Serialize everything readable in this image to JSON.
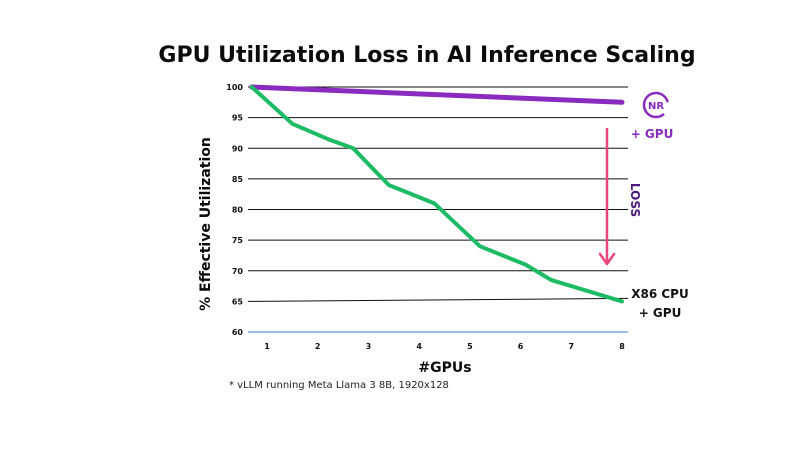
{
  "chart_data": {
    "type": "line",
    "title": "GPU Utilization Loss in AI Inference Scaling",
    "xlabel": "#GPUs",
    "ylabel": "% Effective Utilization",
    "x_ticks": [
      "1",
      "2",
      "3",
      "4",
      "5",
      "6",
      "7",
      "8"
    ],
    "y_ticks": [
      "100",
      "95",
      "90",
      "85",
      "80",
      "75",
      "70",
      "65",
      "60"
    ],
    "ylim": [
      60,
      100
    ],
    "grid": true,
    "series": [
      {
        "name": "+ GPU",
        "color": "#8a2bbf",
        "values": [
          [
            0.7,
            100
          ],
          [
            8,
            97.5
          ]
        ]
      },
      {
        "name": "X86 CPU + GPU",
        "color": "#1dbb63",
        "values": [
          [
            0.7,
            100
          ],
          [
            1.5,
            94
          ],
          [
            2.2,
            91.5
          ],
          [
            2.7,
            90
          ],
          [
            3.4,
            84
          ],
          [
            4.3,
            81
          ],
          [
            5.2,
            74
          ],
          [
            6.1,
            71
          ],
          [
            6.6,
            68.5
          ],
          [
            8,
            65
          ]
        ]
      }
    ],
    "annotations": [
      {
        "text": "LOSS",
        "color": "#4a1a7a"
      }
    ],
    "footnote": "* vLLM running Meta Llama 3 8B, 1920x128",
    "logo_text": "NR",
    "loss_arrow_color": "#e8457a"
  }
}
